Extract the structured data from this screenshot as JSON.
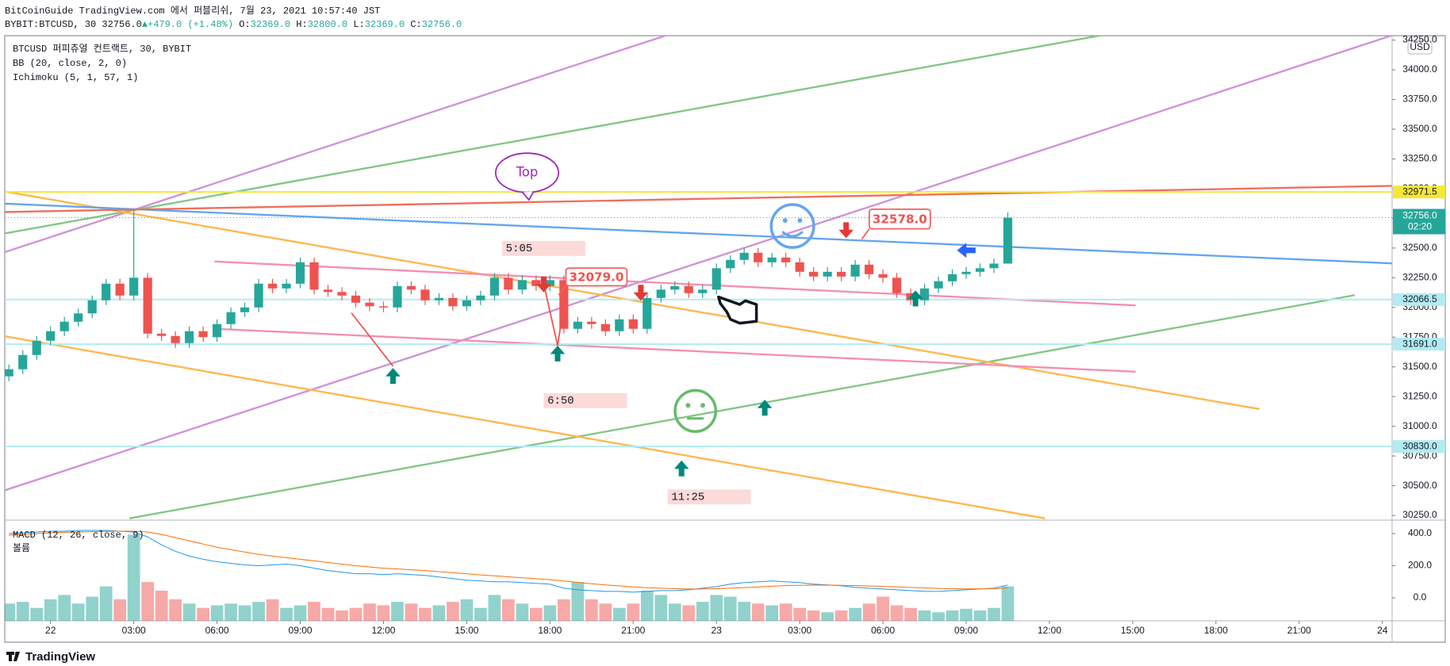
{
  "header": {
    "line1": "BitCoinGuide TradingView.com 에서 퍼블리쉬, 7월 23, 2021 10:57:40 JST",
    "symbol": "BYBIT:BTCUSD, 30",
    "price": "32756.0",
    "change": "▲+479.0 (+1.48%)",
    "ohlc": [
      {
        "label": "O:",
        "value": "32369.0"
      },
      {
        "label": "H:",
        "value": "32800.0"
      },
      {
        "label": "L:",
        "value": "32369.0"
      },
      {
        "label": "C:",
        "value": "32756.0"
      }
    ]
  },
  "footer": {
    "brand": "TradingView"
  },
  "chart_data": [
    {
      "type": "candlestick",
      "legend": [
        "BTCUSD 퍼피츄얼 컨트랙트, 30, BYBIT",
        "BB (20, close, 2, 0)",
        "Ichimoku (5, 1, 57, 1)"
      ],
      "currency": "USD",
      "up_color": "#26a69a",
      "down_color": "#ef5350",
      "open": [
        31420,
        31480,
        31600,
        31720,
        31800,
        31880,
        31950,
        32060,
        32200,
        32100,
        32250,
        31780,
        31760,
        31700,
        31800,
        31750,
        31860,
        31960,
        32000,
        32200,
        32160,
        32200,
        32380,
        32150,
        32130,
        32100,
        32040,
        32010,
        32000,
        32180,
        32150,
        32060,
        32080,
        32010,
        32060,
        32100,
        32250,
        32150,
        32230,
        32180,
        32230,
        31820,
        31880,
        31860,
        31800,
        31900,
        31820,
        32080,
        32150,
        32180,
        32120,
        32150,
        32330,
        32400,
        32460,
        32380,
        32420,
        32380,
        32300,
        32260,
        32300,
        32260,
        32360,
        32280,
        32250,
        32120,
        32060,
        32160,
        32220,
        32280,
        32300,
        32330,
        32369
      ],
      "high": [
        31520,
        31640,
        31760,
        31840,
        31920,
        31990,
        32100,
        32240,
        32240,
        32820,
        32290,
        31820,
        31800,
        31840,
        31840,
        31900,
        32000,
        32040,
        32240,
        32240,
        32240,
        32420,
        32420,
        32190,
        32170,
        32140,
        32080,
        32050,
        32220,
        32220,
        32190,
        32120,
        32120,
        32100,
        32140,
        32290,
        32290,
        32270,
        32270,
        32270,
        32270,
        31920,
        31920,
        31900,
        31940,
        31940,
        32120,
        32190,
        32220,
        32220,
        32190,
        32370,
        32440,
        32500,
        32500,
        32460,
        32460,
        32420,
        32340,
        32340,
        32340,
        32400,
        32400,
        32320,
        32290,
        32160,
        32200,
        32260,
        32320,
        32340,
        32370,
        32410,
        32800
      ],
      "low": [
        31380,
        31440,
        31560,
        31680,
        31760,
        31840,
        31910,
        32020,
        32060,
        32060,
        31740,
        31720,
        31660,
        31660,
        31710,
        31710,
        31820,
        31920,
        31960,
        32120,
        32120,
        32160,
        32110,
        32090,
        32060,
        32000,
        31970,
        31960,
        31960,
        32110,
        32020,
        32020,
        31970,
        31970,
        32020,
        32060,
        32110,
        32110,
        32140,
        32140,
        31780,
        31780,
        31820,
        31760,
        31760,
        31780,
        31780,
        32040,
        32110,
        32080,
        32080,
        32110,
        32290,
        32360,
        32340,
        32340,
        32340,
        32260,
        32220,
        32220,
        32220,
        32220,
        32240,
        32210,
        32080,
        32020,
        32020,
        32120,
        32180,
        32240,
        32260,
        32290,
        32369
      ],
      "close": [
        31480,
        31600,
        31720,
        31800,
        31880,
        31950,
        32060,
        32200,
        32100,
        32250,
        31780,
        31760,
        31700,
        31800,
        31750,
        31860,
        31960,
        32000,
        32200,
        32160,
        32200,
        32380,
        32150,
        32130,
        32100,
        32040,
        32010,
        32000,
        32180,
        32150,
        32060,
        32080,
        32010,
        32060,
        32100,
        32250,
        32150,
        32230,
        32180,
        32230,
        31820,
        31880,
        31860,
        31800,
        31900,
        31820,
        32080,
        32150,
        32180,
        32120,
        32150,
        32330,
        32400,
        32460,
        32380,
        32420,
        32380,
        32300,
        32260,
        32300,
        32260,
        32360,
        32280,
        32250,
        32120,
        32060,
        32160,
        32220,
        32280,
        32300,
        32330,
        32369,
        32756
      ],
      "xlim": [
        -0.3,
        99.7
      ],
      "xticks": [
        {
          "value": 3,
          "label": "22"
        },
        {
          "value": 9,
          "label": "03:00"
        },
        {
          "value": 15,
          "label": "06:00"
        },
        {
          "value": 21,
          "label": "09:00"
        },
        {
          "value": 27,
          "label": "12:00"
        },
        {
          "value": 33,
          "label": "15:00"
        },
        {
          "value": 39,
          "label": "18:00"
        },
        {
          "value": 45,
          "label": "21:00"
        },
        {
          "value": 51,
          "label": "23"
        },
        {
          "value": 57,
          "label": "03:00"
        },
        {
          "value": 63,
          "label": "06:00"
        },
        {
          "value": 69,
          "label": "09:00"
        },
        {
          "value": 75,
          "label": "12:00"
        },
        {
          "value": 81,
          "label": "15:00"
        },
        {
          "value": 87,
          "label": "18:00"
        },
        {
          "value": 93,
          "label": "21:00"
        },
        {
          "value": 99,
          "label": "24"
        }
      ],
      "ylim": [
        30217,
        34287
      ],
      "yticks": [
        {
          "value": 30250,
          "label": "30250.0"
        },
        {
          "value": 30500,
          "label": "30500.0"
        },
        {
          "value": 30750,
          "label": "30750.0"
        },
        {
          "value": 31000,
          "label": "31000.0"
        },
        {
          "value": 31250,
          "label": "31250.0"
        },
        {
          "value": 31500,
          "label": "31500.0"
        },
        {
          "value": 31750,
          "label": "31750.0"
        },
        {
          "value": 32000,
          "label": "32000.0"
        },
        {
          "value": 32250,
          "label": "32250.0"
        },
        {
          "value": 32500,
          "label": "32500.0"
        },
        {
          "value": 32750,
          "label": "32750.0"
        },
        {
          "value": 33000,
          "label": "33000.0"
        },
        {
          "value": 33250,
          "label": "33250.0"
        },
        {
          "value": 33500,
          "label": "33500.0"
        },
        {
          "value": 33750,
          "label": "33750.0"
        },
        {
          "value": 34000,
          "label": "34000.0"
        },
        {
          "value": 34250,
          "label": "34250.0"
        }
      ],
      "levels": [
        {
          "value": 32971.5,
          "label": "32971.5",
          "color": "#f5e63a"
        },
        {
          "value": 32066.5,
          "label": "32066.5",
          "color": "#b2ebf2"
        },
        {
          "value": 31691,
          "label": "31691.0",
          "color": "#b2ebf2"
        },
        {
          "value": 30830,
          "label": "30830.0",
          "color": "#b2ebf2"
        }
      ],
      "last_price": {
        "value": 32756,
        "label": "32756.0",
        "countdown": "02:20",
        "color": "#26a69a"
      },
      "annotations": [
        "Top",
        "32578.0",
        "32079.0",
        "5:05",
        "6:50",
        "11:25"
      ]
    },
    {
      "type": "line",
      "legend": [
        "MACD (12, 26, close, 9)",
        "볼륨"
      ],
      "ylim": [
        -143,
        479
      ],
      "yticks": [
        {
          "value": 0,
          "label": "0.0"
        },
        {
          "value": 200,
          "label": "200.0"
        },
        {
          "value": 400,
          "label": "400.0"
        }
      ],
      "y2lim": [
        0,
        116
      ],
      "series": [
        {
          "color": "#2196f3",
          "values": [
            400,
            405,
            410,
            415,
            415,
            420,
            420,
            420,
            415,
            410,
            380,
            330,
            290,
            260,
            240,
            225,
            215,
            205,
            200,
            205,
            210,
            200,
            185,
            170,
            160,
            150,
            150,
            145,
            150,
            145,
            140,
            130,
            120,
            110,
            105,
            100,
            100,
            95,
            90,
            85,
            60,
            50,
            45,
            40,
            40,
            35,
            40,
            45,
            45,
            50,
            60,
            70,
            85,
            95,
            100,
            105,
            100,
            95,
            85,
            80,
            75,
            65,
            60,
            55,
            50,
            45,
            40,
            40,
            45,
            50,
            55,
            60,
            80
          ]
        },
        {
          "color": "#ff6d00",
          "values": [
            390,
            395,
            400,
            405,
            408,
            410,
            412,
            414,
            415,
            415,
            410,
            395,
            375,
            355,
            335,
            315,
            300,
            285,
            270,
            260,
            250,
            240,
            230,
            220,
            210,
            200,
            192,
            185,
            180,
            175,
            170,
            163,
            156,
            150,
            143,
            137,
            131,
            125,
            119,
            113,
            105,
            96,
            88,
            80,
            74,
            68,
            63,
            60,
            57,
            55,
            55,
            57,
            60,
            64,
            68,
            72,
            76,
            78,
            79,
            79,
            78,
            76,
            74,
            71,
            68,
            65,
            62,
            59,
            57,
            56,
            56,
            57,
            62
          ]
        },
        {
          "axis": "y2",
          "up_color": "rgba(38,166,154,0.5)",
          "down_color": "rgba(239,83,80,0.5)",
          "values": [
            20,
            22,
            15,
            25,
            30,
            20,
            28,
            40,
            25,
            100,
            45,
            35,
            25,
            20,
            15,
            18,
            20,
            18,
            22,
            25,
            15,
            18,
            22,
            15,
            12,
            15,
            20,
            18,
            22,
            20,
            15,
            18,
            22,
            25,
            15,
            30,
            25,
            20,
            15,
            18,
            25,
            45,
            25,
            20,
            15,
            20,
            35,
            30,
            20,
            18,
            22,
            30,
            28,
            22,
            20,
            18,
            20,
            15,
            12,
            10,
            12,
            15,
            20,
            28,
            18,
            15,
            12,
            10,
            12,
            14,
            12,
            15,
            40
          ]
        }
      ]
    }
  ]
}
